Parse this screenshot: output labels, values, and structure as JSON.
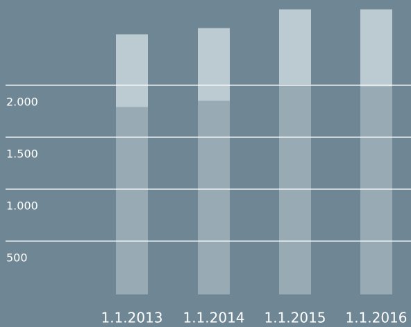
{
  "chart_data": {
    "type": "bar",
    "stacked": true,
    "categories": [
      "1.1.2013",
      "1.1.2014",
      "1.1.2015",
      "1.1.2016"
    ],
    "series": [
      {
        "color": "#98abb5",
        "values": [
          1790,
          1850,
          2010,
          1990
        ]
      },
      {
        "color": "#bccad2",
        "values": [
          700,
          700,
          720,
          740
        ]
      }
    ],
    "ylim": [
      0,
      2820
    ],
    "yticks": [
      500,
      {
        "value": 1000,
        "label": "1.000"
      },
      {
        "value": 1500,
        "label": "1.500"
      },
      {
        "value": 2000,
        "label": "2.000"
      }
    ],
    "grid": true
  }
}
